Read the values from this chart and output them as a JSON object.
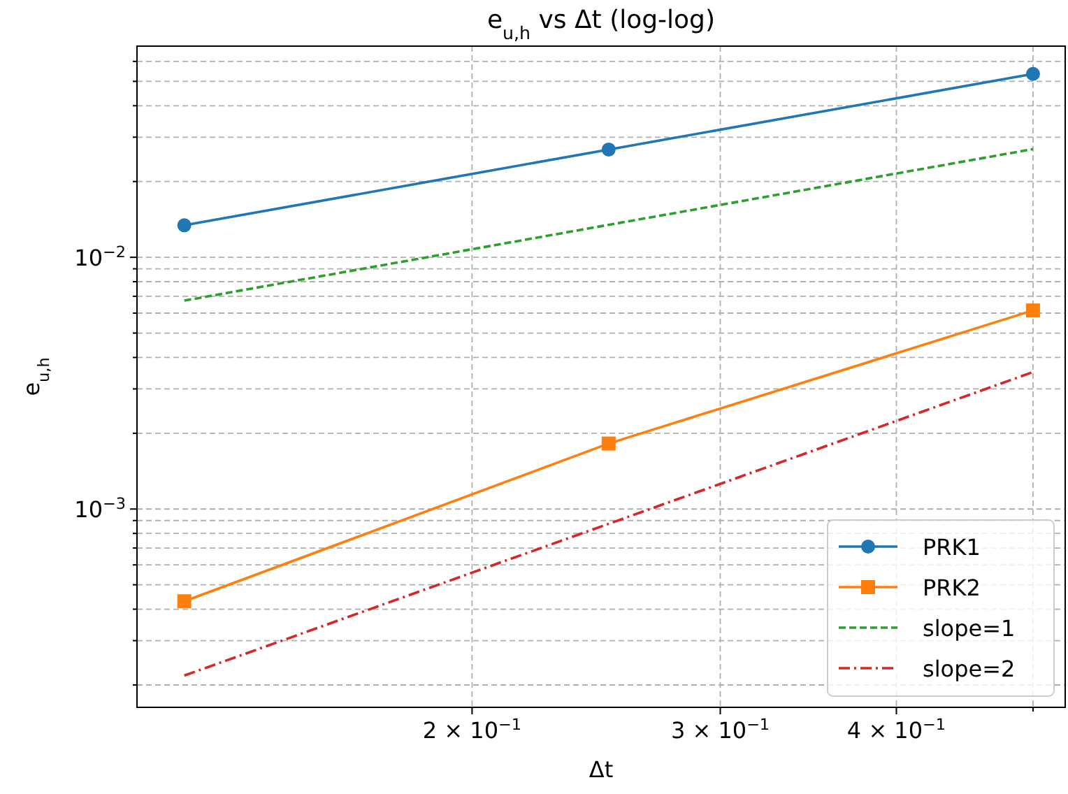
{
  "chart_data": {
    "type": "line",
    "title": "e$_{u,h}$ vs Δt (log-log)",
    "xlabel": "Δt",
    "ylabel": "e$_{u,h}$",
    "log": "xy",
    "grid": true,
    "legend": "bottom right",
    "x": [
      0.125,
      0.25,
      0.5
    ],
    "xlim": [
      0.1157,
      0.527
    ],
    "xticks": [
      {
        "value": 0.2,
        "label": "2 × 10$^{−1}$"
      },
      {
        "value": 0.3,
        "label": "3 × 10$^{−1}$"
      },
      {
        "value": 0.4,
        "label": "4 × 10$^{−1}$"
      },
      {
        "value": 0.5,
        "label": null
      }
    ],
    "ylim": [
      0.000163,
      0.069
    ],
    "yticks": [
      {
        "value": 0.0002,
        "label": null
      },
      {
        "value": 0.0003,
        "label": null
      },
      {
        "value": 0.0004,
        "label": null
      },
      {
        "value": 0.0005,
        "label": null
      },
      {
        "value": 0.0006,
        "label": null
      },
      {
        "value": 0.0007,
        "label": null
      },
      {
        "value": 0.0008,
        "label": null
      },
      {
        "value": 0.0009,
        "label": null
      },
      {
        "value": 0.001,
        "label": "10$^{−3}$"
      },
      {
        "value": 0.002,
        "label": null
      },
      {
        "value": 0.003,
        "label": null
      },
      {
        "value": 0.004,
        "label": null
      },
      {
        "value": 0.005,
        "label": null
      },
      {
        "value": 0.006,
        "label": null
      },
      {
        "value": 0.007,
        "label": null
      },
      {
        "value": 0.008,
        "label": null
      },
      {
        "value": 0.009,
        "label": null
      },
      {
        "value": 0.01,
        "label": "10$^{−2}$"
      },
      {
        "value": 0.02,
        "label": null
      },
      {
        "value": 0.03,
        "label": null
      },
      {
        "value": 0.04,
        "label": null
      },
      {
        "value": 0.05,
        "label": null
      },
      {
        "value": 0.06,
        "label": null
      }
    ],
    "series": [
      {
        "name": "PRK1",
        "color": "#1f77b4",
        "values": [
          0.0134,
          0.0268,
          0.0535
        ],
        "marker": "circle",
        "line_style": "solid"
      },
      {
        "name": "PRK2",
        "color": "#ff7f0e",
        "values": [
          0.00043,
          0.00182,
          0.00615
        ],
        "marker": "square",
        "line_style": "solid"
      },
      {
        "name": "slope=1",
        "color": "#2ca02c",
        "values": [
          0.00673,
          null,
          0.0269
        ],
        "marker": "none",
        "line_style": "dashed"
      },
      {
        "name": "slope=2",
        "color": "#d62728",
        "values": [
          0.000218,
          null,
          0.0035
        ],
        "marker": "none",
        "line_style": "dashdot"
      }
    ]
  }
}
